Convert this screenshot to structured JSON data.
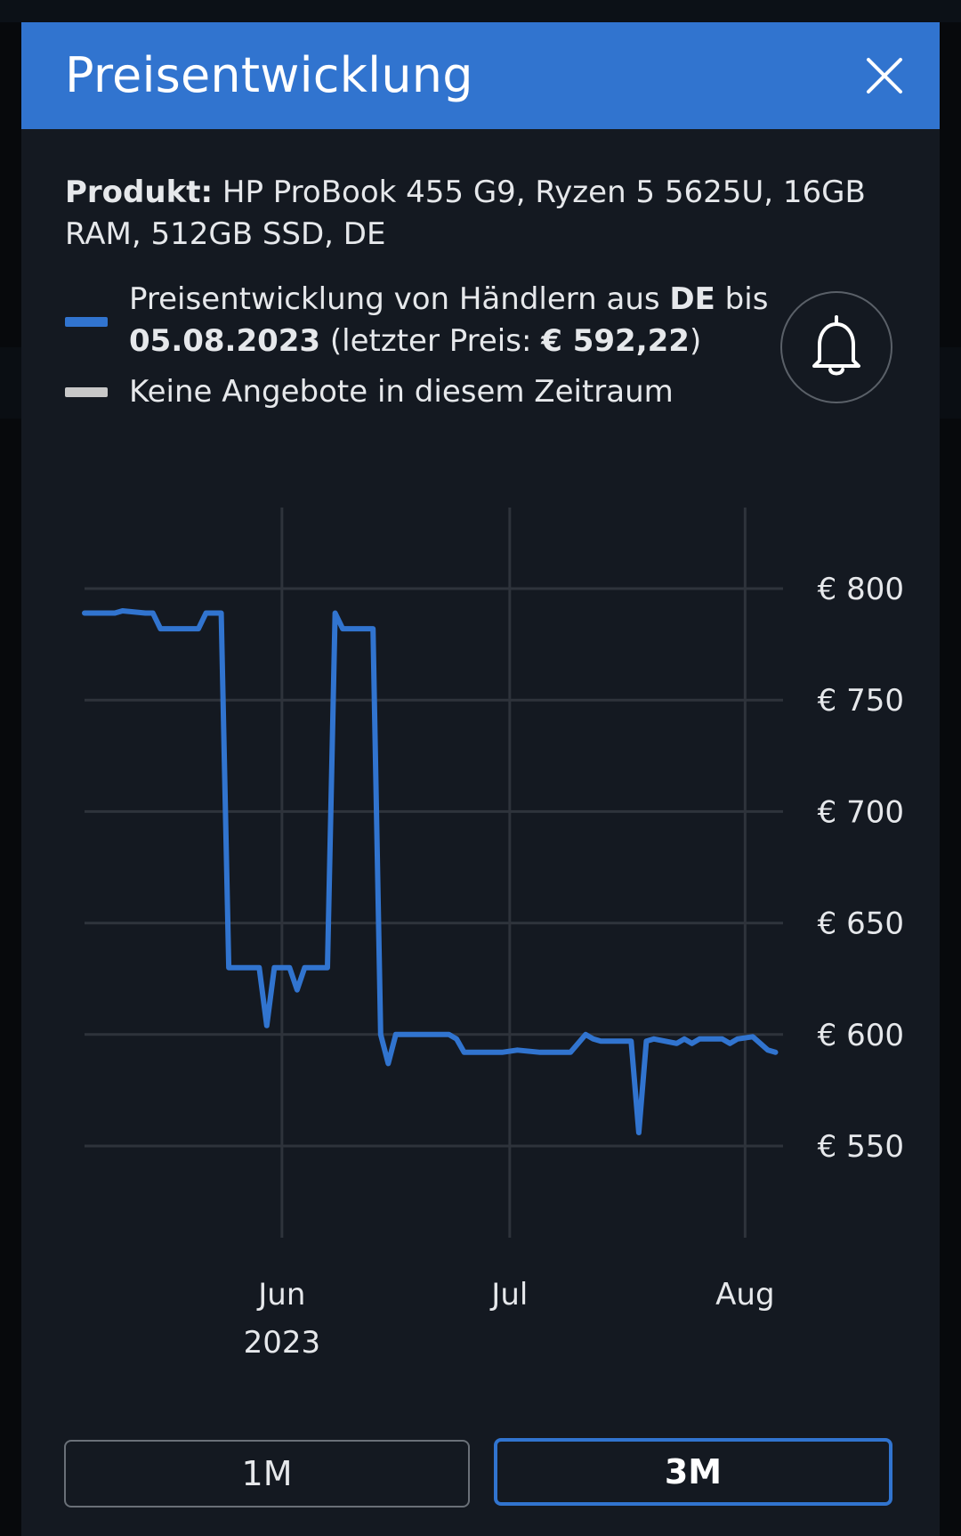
{
  "dialog": {
    "title": "Preisentwicklung",
    "close_icon": "close-icon"
  },
  "product": {
    "label": "Produkt:",
    "name": "HP ProBook 455 G9, Ryzen 5 5625U, 16GB RAM, 512GB SSD, DE"
  },
  "legend": {
    "series": {
      "color": "#3174cf",
      "text_1": "Preisentwicklung von Händlern aus ",
      "country": "DE",
      "text_2": " bis",
      "date": "05.08.2023",
      "text_3": " (letzter Preis: ",
      "last_price": "€ 592,22",
      "text_4": ")"
    },
    "no_offers": {
      "color": "#c8c8c8",
      "text": "Keine Angebote in diesem Zeitraum"
    }
  },
  "alert_button": {
    "icon": "bell-icon"
  },
  "chart_data": {
    "type": "line",
    "ylim": [
      520,
      830
    ],
    "xlim": [
      "2023-05-06",
      "2023-08-06"
    ],
    "grid": true,
    "y_ticks": [
      {
        "value": 800,
        "label": "€ 800"
      },
      {
        "value": 750,
        "label": "€ 750"
      },
      {
        "value": 700,
        "label": "€ 700"
      },
      {
        "value": 650,
        "label": "€ 650"
      },
      {
        "value": 600,
        "label": "€ 600"
      },
      {
        "value": 550,
        "label": "€ 550"
      }
    ],
    "x_ticks": [
      {
        "date": "2023-06-01",
        "label": "Jun",
        "sublabel": "2023"
      },
      {
        "date": "2023-07-01",
        "label": "Jul",
        "sublabel": ""
      },
      {
        "date": "2023-08-01",
        "label": "Aug",
        "sublabel": ""
      }
    ],
    "series": [
      {
        "color": "#3174cf",
        "points": [
          [
            "2023-05-06",
            789
          ],
          [
            "2023-05-10",
            789
          ],
          [
            "2023-05-11",
            790
          ],
          [
            "2023-05-14",
            789
          ],
          [
            "2023-05-15",
            789
          ],
          [
            "2023-05-16",
            782
          ],
          [
            "2023-05-20",
            782
          ],
          [
            "2023-05-21",
            782
          ],
          [
            "2023-05-22",
            789
          ],
          [
            "2023-05-24",
            789
          ],
          [
            "2023-05-25",
            630
          ],
          [
            "2023-05-27",
            630
          ],
          [
            "2023-05-29",
            630
          ],
          [
            "2023-05-30",
            604
          ],
          [
            "2023-05-31",
            630
          ],
          [
            "2023-06-02",
            630
          ],
          [
            "2023-06-03",
            620
          ],
          [
            "2023-06-04",
            630
          ],
          [
            "2023-06-07",
            630
          ],
          [
            "2023-06-08",
            789
          ],
          [
            "2023-06-09",
            782
          ],
          [
            "2023-06-13",
            782
          ],
          [
            "2023-06-14",
            600
          ],
          [
            "2023-06-15",
            587
          ],
          [
            "2023-06-16",
            600
          ],
          [
            "2023-06-23",
            600
          ],
          [
            "2023-06-24",
            598
          ],
          [
            "2023-06-25",
            592
          ],
          [
            "2023-06-30",
            592
          ],
          [
            "2023-07-02",
            593
          ],
          [
            "2023-07-05",
            592
          ],
          [
            "2023-07-09",
            592
          ],
          [
            "2023-07-11",
            600
          ],
          [
            "2023-07-12",
            598
          ],
          [
            "2023-07-13",
            597
          ],
          [
            "2023-07-17",
            597
          ],
          [
            "2023-07-18",
            556
          ],
          [
            "2023-07-19",
            597
          ],
          [
            "2023-07-20",
            598
          ],
          [
            "2023-07-23",
            596
          ],
          [
            "2023-07-24",
            598
          ],
          [
            "2023-07-25",
            596
          ],
          [
            "2023-07-26",
            598
          ],
          [
            "2023-07-29",
            598
          ],
          [
            "2023-07-30",
            596
          ],
          [
            "2023-07-31",
            598
          ],
          [
            "2023-08-02",
            599
          ],
          [
            "2023-08-04",
            593
          ],
          [
            "2023-08-05",
            592
          ]
        ]
      }
    ]
  },
  "range_buttons": [
    {
      "label": "1M",
      "active": false
    },
    {
      "label": "3M",
      "active": true
    }
  ]
}
